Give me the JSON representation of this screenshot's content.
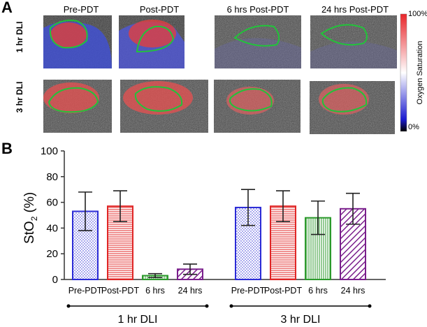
{
  "panel_a": {
    "letter": "A",
    "columns": [
      "Pre-PDT",
      "Post-PDT",
      "6 hrs Post-PDT",
      "24 hrs Post-PDT"
    ],
    "rows": [
      "1 hr DLI",
      "3 hr DLI"
    ],
    "colorbar": {
      "top": "100%",
      "bottom": "0%",
      "title": "Oxygen Saturation"
    },
    "colors": {
      "high": "#e8252a",
      "mid": "#ffffff",
      "low": "#1a1ad0",
      "zero": "#000000",
      "roi": "#22c33a"
    }
  },
  "panel_b": {
    "letter": "B"
  },
  "chart_data": {
    "type": "bar",
    "title": "",
    "ylabel": "StO2 (%)",
    "ylabel_main": "StO",
    "ylabel_sub": "2",
    "ylabel_tail": " (%)",
    "ylim": [
      0,
      100
    ],
    "yticks": [
      "0",
      "20",
      "40",
      "60",
      "80",
      "100"
    ],
    "groups": [
      {
        "label": "1 hr DLI",
        "bars": [
          {
            "category": "Pre-PDT",
            "value": 53,
            "error": 15,
            "pattern": "dots-blue"
          },
          {
            "category": "Post-PDT",
            "value": 57,
            "error": 12,
            "pattern": "hlines-red"
          },
          {
            "category": "6 hrs",
            "value": 3,
            "error": 1.5,
            "pattern": "vlines-green"
          },
          {
            "category": "24 hrs",
            "value": 8,
            "error": 4,
            "pattern": "diag-purple"
          }
        ]
      },
      {
        "label": "3 hr DLI",
        "bars": [
          {
            "category": "Pre-PDT",
            "value": 56,
            "error": 14,
            "pattern": "dots-blue"
          },
          {
            "category": "Post-PDT",
            "value": 57,
            "error": 12,
            "pattern": "hlines-red"
          },
          {
            "category": "6 hrs",
            "value": 48,
            "error": 13,
            "pattern": "vlines-green"
          },
          {
            "category": "24 hrs",
            "value": 55,
            "error": 12,
            "pattern": "diag-purple"
          }
        ]
      }
    ],
    "series_colors": {
      "dots-blue": "#2b2bd6",
      "hlines-red": "#e02626",
      "vlines-green": "#2c9a2c",
      "diag-purple": "#7a1f8c"
    }
  }
}
